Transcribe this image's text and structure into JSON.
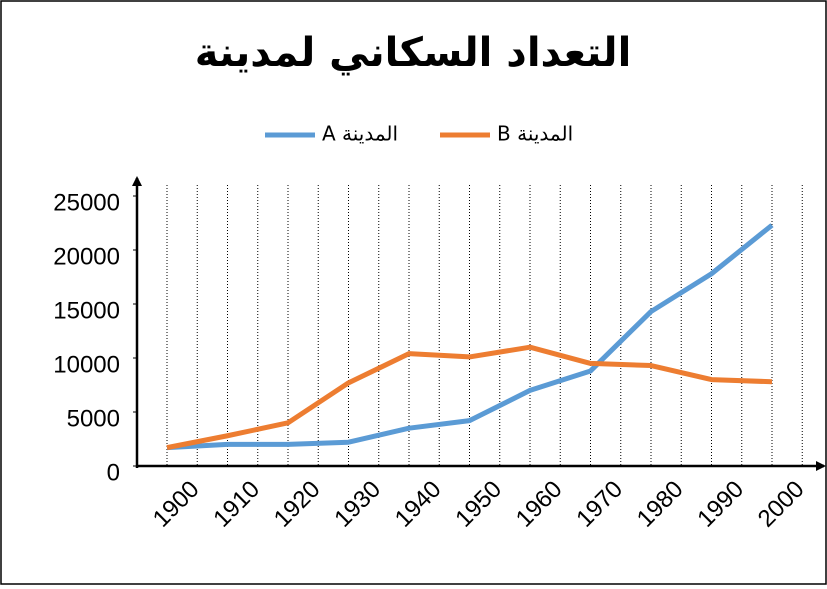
{
  "chart_data": {
    "type": "line",
    "title": "التعداد السكاني لمدينة",
    "categories": [
      "1900",
      "1910",
      "1920",
      "1930",
      "1940",
      "1950",
      "1960",
      "1970",
      "1980",
      "1990",
      "2000"
    ],
    "series": [
      {
        "name": "المدينة A",
        "color": "#5b9bd5",
        "values": [
          1700,
          2000,
          2000,
          2200,
          3500,
          4200,
          7000,
          8800,
          14300,
          17800,
          22300
        ]
      },
      {
        "name": "المدينة B",
        "color": "#ed7d31",
        "values": [
          1700,
          2800,
          4000,
          7700,
          10400,
          10100,
          11000,
          9500,
          9300,
          8000,
          7800
        ]
      }
    ],
    "ylim": [
      0,
      25000
    ],
    "yticks": [
      0,
      5000,
      10000,
      15000,
      20000,
      25000
    ],
    "grid": true,
    "legend": "top"
  }
}
